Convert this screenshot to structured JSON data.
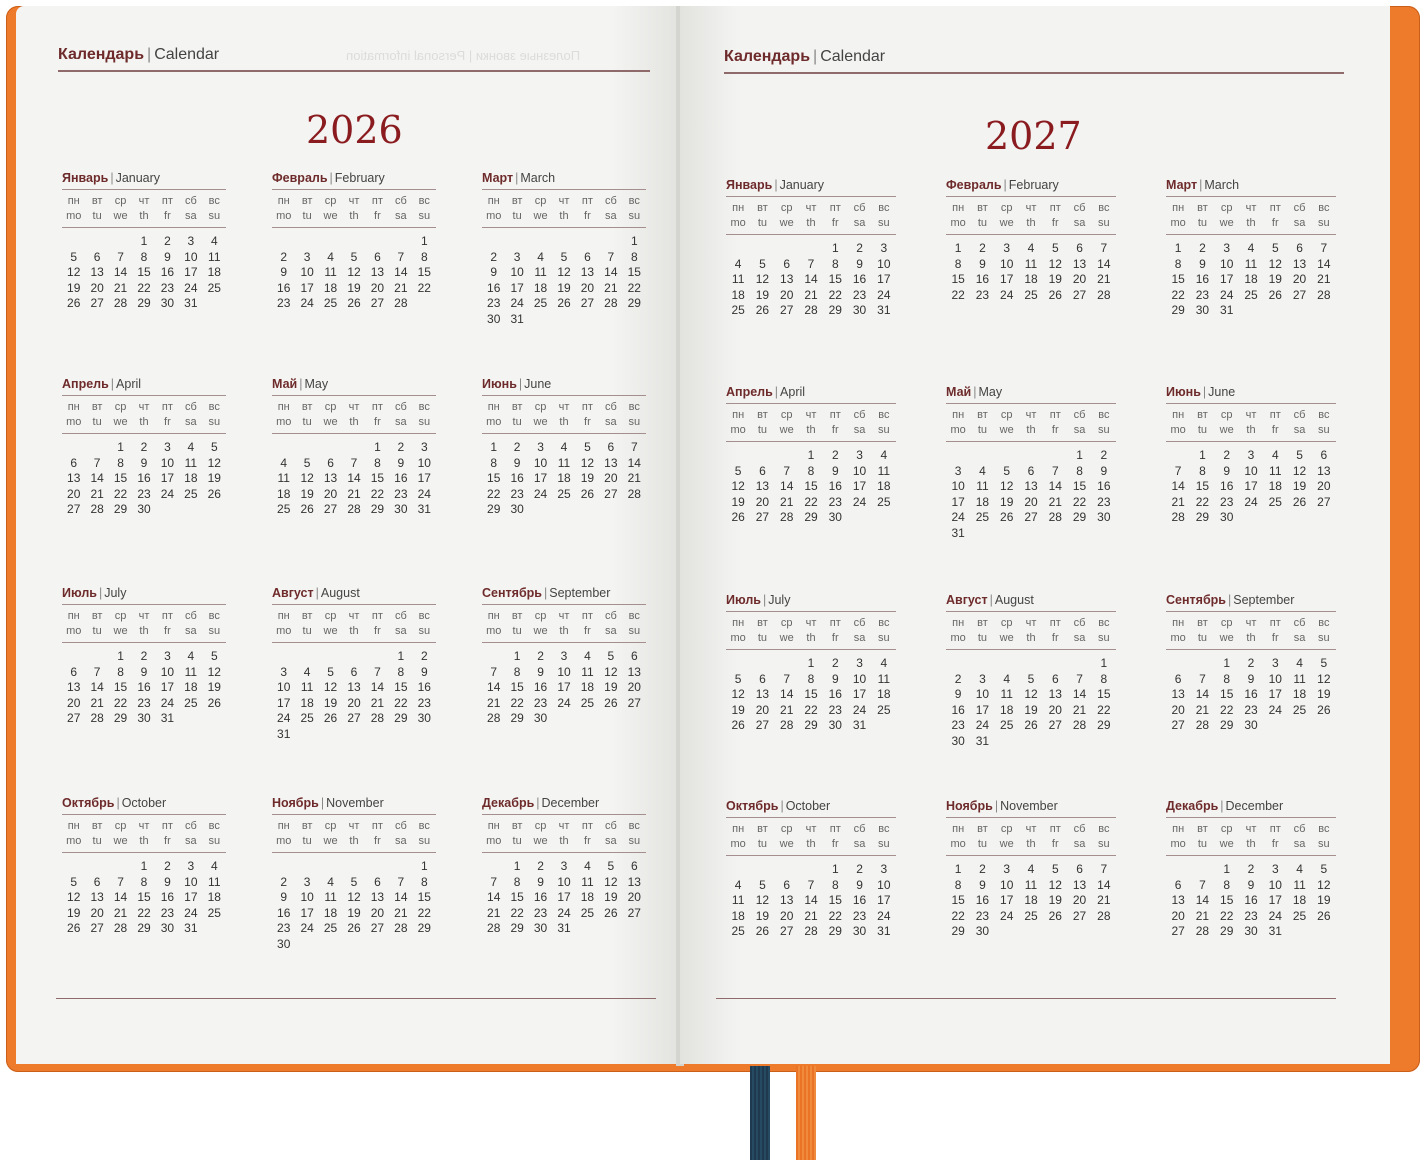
{
  "book": {
    "cover_color": "#ee7a2c",
    "ribbon_colors": [
      "#1f3a4e",
      "#ea7326"
    ]
  },
  "left_page": {
    "header_ru": "Календарь",
    "header_sep": "|",
    "header_en": "Calendar",
    "ghost_text": "Полезные звонки | Personal information",
    "year": "2026"
  },
  "right_page": {
    "header_ru": "Календарь",
    "header_sep": "|",
    "header_en": "Calendar",
    "year": "2027"
  },
  "weekday_headers_ru": [
    "пн",
    "вт",
    "ср",
    "чт",
    "пт",
    "сб",
    "вс"
  ],
  "weekday_headers_en": [
    "mo",
    "tu",
    "we",
    "th",
    "fr",
    "sa",
    "su"
  ],
  "months_2026": [
    {
      "ru": "Январь",
      "en": "January",
      "offset": 3,
      "days": 31
    },
    {
      "ru": "Февраль",
      "en": "February",
      "offset": 6,
      "days": 28
    },
    {
      "ru": "Март",
      "en": "March",
      "offset": 6,
      "days": 31
    },
    {
      "ru": "Апрель",
      "en": "April",
      "offset": 2,
      "days": 30
    },
    {
      "ru": "Май",
      "en": "May",
      "offset": 4,
      "days": 31
    },
    {
      "ru": "Июнь",
      "en": "June",
      "offset": 0,
      "days": 30
    },
    {
      "ru": "Июль",
      "en": "July",
      "offset": 2,
      "days": 31
    },
    {
      "ru": "Август",
      "en": "August",
      "offset": 5,
      "days": 31
    },
    {
      "ru": "Сентябрь",
      "en": "September",
      "offset": 1,
      "days": 30
    },
    {
      "ru": "Октябрь",
      "en": "October",
      "offset": 3,
      "days": 31
    },
    {
      "ru": "Ноябрь",
      "en": "November",
      "offset": 6,
      "days": 30
    },
    {
      "ru": "Декабрь",
      "en": "December",
      "offset": 1,
      "days": 31
    }
  ],
  "months_2027": [
    {
      "ru": "Январь",
      "en": "January",
      "offset": 4,
      "days": 31
    },
    {
      "ru": "Февраль",
      "en": "February",
      "offset": 0,
      "days": 28
    },
    {
      "ru": "Март",
      "en": "March",
      "offset": 0,
      "days": 31
    },
    {
      "ru": "Апрель",
      "en": "April",
      "offset": 3,
      "days": 30
    },
    {
      "ru": "Май",
      "en": "May",
      "offset": 5,
      "days": 31
    },
    {
      "ru": "Июнь",
      "en": "June",
      "offset": 1,
      "days": 30
    },
    {
      "ru": "Июль",
      "en": "July",
      "offset": 3,
      "days": 31
    },
    {
      "ru": "Август",
      "en": "August",
      "offset": 6,
      "days": 31
    },
    {
      "ru": "Сентябрь",
      "en": "September",
      "offset": 2,
      "days": 30
    },
    {
      "ru": "Октябрь",
      "en": "October",
      "offset": 4,
      "days": 31
    },
    {
      "ru": "Ноябрь",
      "en": "November",
      "offset": 0,
      "days": 30
    },
    {
      "ru": "Декабрь",
      "en": "December",
      "offset": 2,
      "days": 31
    }
  ]
}
